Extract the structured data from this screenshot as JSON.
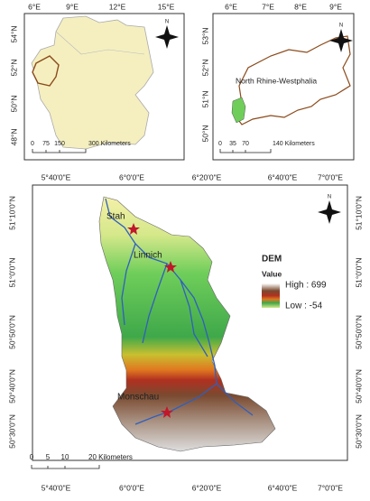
{
  "inset_germany": {
    "lon_labels": [
      "6°E",
      "9°E",
      "12°E",
      "15°E"
    ],
    "lat_labels": [
      "54°N",
      "52°N",
      "50°N",
      "48°N"
    ],
    "scale_bar": [
      "0",
      "75",
      "150",
      "300 Kilometers"
    ],
    "north": "N"
  },
  "inset_nrw": {
    "lon_labels": [
      "6°E",
      "7°E",
      "8°E",
      "9°E"
    ],
    "lat_labels": [
      "53°N",
      "52°N",
      "51°N",
      "50°N"
    ],
    "region_label": "North Rhine-Westphalia",
    "scale_bar": [
      "0",
      "35",
      "70",
      "140 Kilometers"
    ],
    "north": "N"
  },
  "main_map": {
    "lon_labels": [
      "5°40'0\"E",
      "6°0'0\"E",
      "6°20'0\"E",
      "6°40'0\"E",
      "7°0'0\"E"
    ],
    "lat_labels": [
      "51°10'0\"N",
      "51°0'0\"N",
      "50°50'0\"N",
      "50°40'0\"N",
      "50°30'0\"N"
    ],
    "towns": [
      "Stah",
      "Linnich",
      "Monschau"
    ],
    "legend": {
      "title": "DEM",
      "subtitle": "Value",
      "high": "High : 699",
      "low": "Low : -54"
    },
    "scale_bar": [
      "0",
      "5",
      "10",
      "20 Kilometers"
    ],
    "north": "N"
  }
}
